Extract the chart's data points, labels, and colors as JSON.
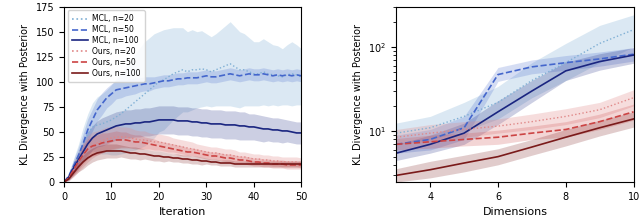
{
  "left": {
    "xlabel": "Iteration",
    "ylabel": "KL Divergence with Posterior",
    "xlim": [
      0,
      50
    ],
    "ylim": [
      0,
      175
    ],
    "yticks": [
      0,
      25,
      50,
      75,
      100,
      125,
      150,
      175
    ],
    "blue_light": "#7fafd4",
    "blue_mid": "#4466cc",
    "blue_dark": "#1a2580",
    "red_light": "#e08888",
    "red_mid": "#cc4444",
    "red_dark": "#7a1a1a",
    "x": [
      0,
      1,
      2,
      3,
      4,
      5,
      6,
      7,
      8,
      9,
      10,
      11,
      12,
      13,
      14,
      15,
      16,
      17,
      18,
      19,
      20,
      21,
      22,
      23,
      24,
      25,
      26,
      27,
      28,
      29,
      30,
      31,
      32,
      33,
      34,
      35,
      36,
      37,
      38,
      39,
      40,
      41,
      42,
      43,
      44,
      45,
      46,
      47,
      48,
      49,
      50
    ],
    "mcl_n20_mean": [
      0,
      5,
      15,
      25,
      38,
      48,
      55,
      57,
      58,
      60,
      62,
      65,
      68,
      72,
      76,
      80,
      84,
      88,
      92,
      96,
      100,
      102,
      105,
      108,
      110,
      112,
      110,
      112,
      112,
      113,
      112,
      110,
      112,
      114,
      116,
      118,
      115,
      112,
      112,
      110,
      108,
      108,
      110,
      108,
      107,
      106,
      105,
      107,
      108,
      107,
      105
    ],
    "mcl_n20_std": [
      0,
      4,
      8,
      12,
      16,
      20,
      24,
      28,
      30,
      32,
      35,
      38,
      40,
      43,
      45,
      48,
      50,
      52,
      52,
      52,
      50,
      50,
      48,
      46,
      44,
      42,
      40,
      40,
      38,
      38,
      36,
      35,
      36,
      38,
      40,
      42,
      40,
      38,
      36,
      34,
      32,
      32,
      33,
      32,
      30,
      30,
      28,
      30,
      32,
      30,
      28
    ],
    "mcl_n50_mean": [
      0,
      6,
      16,
      26,
      38,
      52,
      62,
      72,
      78,
      84,
      88,
      92,
      93,
      94,
      95,
      96,
      97,
      98,
      98,
      99,
      100,
      101,
      101,
      102,
      103,
      103,
      104,
      104,
      104,
      105,
      106,
      105,
      105,
      106,
      107,
      108,
      107,
      106,
      107,
      108,
      107,
      107,
      108,
      107,
      106,
      107,
      106,
      107,
      106,
      107,
      106
    ],
    "mcl_n50_std": [
      0,
      3,
      6,
      8,
      10,
      11,
      11,
      11,
      11,
      10,
      10,
      9,
      9,
      8,
      8,
      8,
      7,
      7,
      7,
      6,
      6,
      6,
      6,
      6,
      6,
      6,
      6,
      6,
      6,
      6,
      6,
      6,
      6,
      6,
      6,
      6,
      6,
      6,
      6,
      6,
      6,
      6,
      6,
      6,
      6,
      6,
      6,
      6,
      6,
      6,
      6
    ],
    "mcl_n100_mean": [
      0,
      5,
      14,
      22,
      30,
      38,
      44,
      48,
      50,
      52,
      54,
      56,
      57,
      58,
      58,
      59,
      59,
      60,
      60,
      61,
      62,
      62,
      62,
      62,
      61,
      61,
      61,
      60,
      60,
      59,
      59,
      58,
      58,
      58,
      57,
      57,
      57,
      56,
      56,
      55,
      55,
      54,
      53,
      53,
      52,
      52,
      51,
      51,
      50,
      49,
      49
    ],
    "mcl_n100_std": [
      0,
      2,
      5,
      8,
      10,
      12,
      12,
      13,
      14,
      14,
      14,
      14,
      14,
      14,
      14,
      14,
      14,
      14,
      14,
      14,
      14,
      14,
      14,
      14,
      14,
      14,
      14,
      14,
      14,
      14,
      14,
      14,
      14,
      14,
      14,
      14,
      14,
      14,
      14,
      13,
      13,
      13,
      13,
      12,
      12,
      12,
      12,
      11,
      11,
      11,
      11
    ],
    "our_n20_mean": [
      0,
      4,
      12,
      20,
      27,
      33,
      37,
      39,
      41,
      43,
      44,
      45,
      45,
      45,
      44,
      43,
      42,
      42,
      41,
      40,
      40,
      39,
      38,
      37,
      36,
      35,
      34,
      33,
      32,
      31,
      30,
      29,
      29,
      28,
      27,
      27,
      26,
      25,
      25,
      24,
      23,
      23,
      22,
      22,
      21,
      21,
      20,
      20,
      20,
      20,
      19
    ],
    "our_n20_std": [
      0,
      3,
      7,
      10,
      12,
      13,
      13,
      12,
      12,
      12,
      11,
      11,
      10,
      10,
      10,
      9,
      9,
      9,
      8,
      8,
      8,
      8,
      8,
      7,
      7,
      7,
      7,
      7,
      6,
      6,
      6,
      6,
      6,
      6,
      6,
      6,
      6,
      5,
      5,
      5,
      5,
      5,
      5,
      5,
      5,
      5,
      5,
      5,
      5,
      5,
      5
    ],
    "our_n50_mean": [
      0,
      4,
      12,
      20,
      27,
      33,
      36,
      37,
      39,
      40,
      41,
      42,
      42,
      42,
      41,
      40,
      40,
      39,
      38,
      37,
      36,
      35,
      34,
      33,
      32,
      31,
      30,
      30,
      29,
      28,
      27,
      26,
      26,
      25,
      24,
      24,
      23,
      22,
      22,
      21,
      20,
      20,
      19,
      19,
      18,
      18,
      18,
      17,
      17,
      17,
      17
    ],
    "our_n50_std": [
      0,
      2,
      5,
      8,
      9,
      10,
      10,
      10,
      10,
      9,
      9,
      9,
      8,
      8,
      7,
      7,
      7,
      6,
      6,
      6,
      5,
      5,
      5,
      5,
      5,
      5,
      4,
      4,
      4,
      4,
      4,
      4,
      4,
      4,
      4,
      4,
      4,
      4,
      4,
      4,
      4,
      4,
      4,
      4,
      4,
      4,
      4,
      4,
      4,
      4,
      4
    ],
    "our_n100_mean": [
      0,
      3,
      9,
      15,
      20,
      24,
      27,
      29,
      30,
      31,
      31,
      31,
      31,
      30,
      29,
      29,
      28,
      28,
      27,
      26,
      26,
      25,
      25,
      24,
      24,
      23,
      23,
      22,
      22,
      21,
      21,
      20,
      20,
      19,
      19,
      19,
      18,
      18,
      18,
      18,
      18,
      18,
      18,
      18,
      18,
      18,
      18,
      18,
      18,
      18,
      18
    ],
    "our_n100_std": [
      0,
      1,
      3,
      5,
      7,
      7,
      7,
      7,
      7,
      7,
      7,
      7,
      6,
      6,
      6,
      6,
      6,
      5,
      5,
      5,
      5,
      5,
      4,
      4,
      4,
      4,
      4,
      4,
      4,
      4,
      3,
      3,
      3,
      3,
      3,
      3,
      3,
      3,
      3,
      3,
      3,
      3,
      3,
      3,
      3,
      3,
      3,
      3,
      3,
      3,
      3
    ]
  },
  "right": {
    "xlabel": "Dimensions",
    "ylabel": "KL Divergence with Posterior",
    "xlim": [
      3,
      10
    ],
    "ylim_log": [
      2.5,
      300
    ],
    "xticks": [
      4,
      6,
      8,
      10
    ],
    "blue_light": "#7fafd4",
    "blue_mid": "#4466cc",
    "blue_dark": "#1a2580",
    "red_light": "#e08888",
    "red_mid": "#cc4444",
    "red_dark": "#7a1a1a",
    "x": [
      3,
      4,
      5,
      6,
      7,
      8,
      9,
      10
    ],
    "mcl_n20_mean": [
      9.5,
      11.0,
      15.0,
      22.0,
      40.0,
      65.0,
      110.0,
      160.0
    ],
    "mcl_n20_std_lo": [
      2.5,
      3.0,
      5.0,
      8.0,
      15.0,
      25.0,
      45.0,
      60.0
    ],
    "mcl_n20_std_hi": [
      3.0,
      4.0,
      7.0,
      12.0,
      25.0,
      45.0,
      70.0,
      80.0
    ],
    "mcl_n50_mean": [
      7.0,
      8.0,
      11.0,
      47.0,
      58.0,
      65.0,
      72.0,
      82.0
    ],
    "mcl_n50_std_lo": [
      1.5,
      2.0,
      3.0,
      8.0,
      10.0,
      12.0,
      13.0,
      14.0
    ],
    "mcl_n50_std_hi": [
      2.0,
      2.5,
      4.0,
      10.0,
      12.0,
      14.0,
      15.0,
      16.0
    ],
    "mcl_n100_mean": [
      5.5,
      7.0,
      9.5,
      17.0,
      30.0,
      52.0,
      67.0,
      80.0
    ],
    "mcl_n100_std_lo": [
      1.0,
      1.5,
      2.5,
      5.0,
      8.0,
      12.0,
      14.0,
      16.0
    ],
    "mcl_n100_std_hi": [
      1.5,
      2.0,
      3.0,
      6.0,
      10.0,
      14.0,
      16.0,
      18.0
    ],
    "our_n20_mean": [
      8.5,
      9.5,
      10.5,
      11.5,
      13.0,
      15.0,
      18.0,
      25.0
    ],
    "our_n20_std_lo": [
      1.5,
      2.0,
      2.0,
      2.0,
      2.5,
      3.0,
      3.5,
      5.0
    ],
    "our_n20_std_hi": [
      2.0,
      2.5,
      2.5,
      2.5,
      3.0,
      3.5,
      4.0,
      6.0
    ],
    "our_n50_mean": [
      7.0,
      7.5,
      8.0,
      8.5,
      9.5,
      10.5,
      13.0,
      17.0
    ],
    "our_n50_std_lo": [
      1.0,
      1.2,
      1.3,
      1.5,
      1.5,
      2.0,
      2.5,
      3.5
    ],
    "our_n50_std_hi": [
      1.2,
      1.5,
      1.5,
      1.8,
      2.0,
      2.5,
      3.0,
      4.0
    ],
    "our_n100_mean": [
      3.0,
      3.5,
      4.2,
      5.0,
      6.5,
      8.5,
      11.0,
      14.0
    ],
    "our_n100_std_lo": [
      0.5,
      0.7,
      0.9,
      1.0,
      1.3,
      1.8,
      2.2,
      2.8
    ],
    "our_n100_std_hi": [
      0.6,
      0.9,
      1.0,
      1.2,
      1.5,
      2.0,
      2.5,
      3.0
    ]
  }
}
